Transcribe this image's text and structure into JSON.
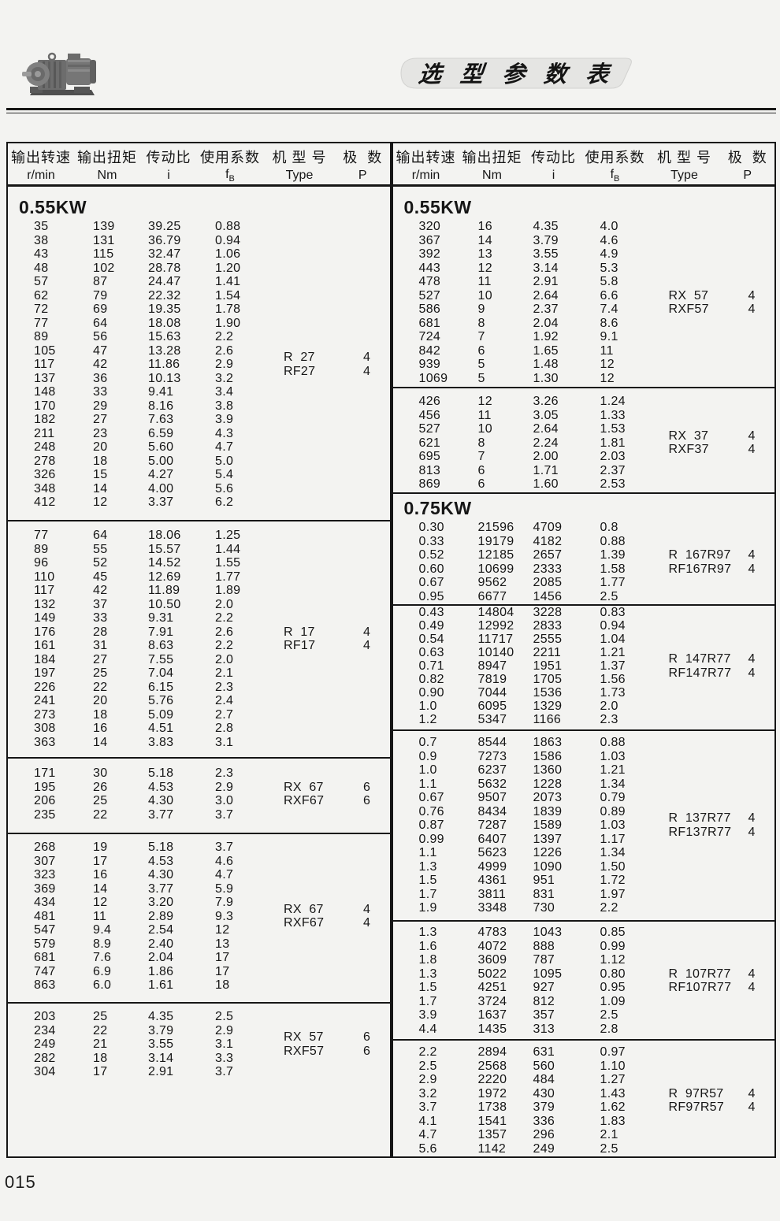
{
  "header": {
    "title": "选 型 参 数 表"
  },
  "footer": {
    "page_number": "015"
  },
  "colors": {
    "ink": "#161616",
    "page_bg": "#f3f3f1",
    "badge_bg": "#e5e5e3"
  },
  "table_headers": {
    "cn": {
      "speed": "输出转速",
      "torque": "输出扭矩",
      "ratio": "传动比",
      "service_factor": "使用系数",
      "model": "机 型 号",
      "poles": "极  数"
    },
    "units": {
      "speed": "r/min",
      "torque": "Nm",
      "ratio": "i",
      "service_factor_main": "f",
      "service_factor_sub": "B",
      "model": "Type",
      "poles": "P"
    }
  },
  "tables": {
    "left": {
      "blocks": [
        {
          "heading": "0.55KW",
          "rows": [
            [
              "35",
              "139",
              "39.25",
              "0.88"
            ],
            [
              "38",
              "131",
              "36.79",
              "0.94"
            ],
            [
              "43",
              "115",
              "32.47",
              "1.06"
            ],
            [
              "48",
              "102",
              "28.78",
              "1.20"
            ],
            [
              "57",
              "87",
              "24.47",
              "1.41"
            ],
            [
              "62",
              "79",
              "22.32",
              "1.54"
            ],
            [
              "72",
              "69",
              "19.35",
              "1.78"
            ],
            [
              "77",
              "64",
              "18.08",
              "1.90"
            ],
            [
              "89",
              "56",
              "15.63",
              "2.2"
            ],
            [
              "105",
              "47",
              "13.28",
              "2.6"
            ],
            [
              "117",
              "42",
              "11.86",
              "2.9"
            ],
            [
              "137",
              "36",
              "10.13",
              "3.2"
            ],
            [
              "148",
              "33",
              "9.41",
              "3.4"
            ],
            [
              "170",
              "29",
              "8.16",
              "3.8"
            ],
            [
              "182",
              "27",
              "7.63",
              "3.9"
            ],
            [
              "211",
              "23",
              "6.59",
              "4.3"
            ],
            [
              "248",
              "20",
              "5.60",
              "4.7"
            ],
            [
              "278",
              "18",
              "5.00",
              "5.0"
            ],
            [
              "326",
              "15",
              "4.27",
              "5.4"
            ],
            [
              "348",
              "14",
              "4.00",
              "5.6"
            ],
            [
              "412",
              "12",
              "3.37",
              "6.2"
            ]
          ],
          "types": [
            [
              "R  27",
              "4"
            ],
            [
              "RF27",
              "4"
            ]
          ]
        },
        {
          "rows": [
            [
              "77",
              "64",
              "18.06",
              "1.25"
            ],
            [
              "89",
              "55",
              "15.57",
              "1.44"
            ],
            [
              "96",
              "52",
              "14.52",
              "1.55"
            ],
            [
              "110",
              "45",
              "12.69",
              "1.77"
            ],
            [
              "117",
              "42",
              "11.89",
              "1.89"
            ],
            [
              "132",
              "37",
              "10.50",
              "2.0"
            ],
            [
              "149",
              "33",
              "9.31",
              "2.2"
            ],
            [
              "176",
              "28",
              "7.91",
              "2.6"
            ],
            [
              "161",
              "31",
              "8.63",
              "2.2"
            ],
            [
              "184",
              "27",
              "7.55",
              "2.0"
            ],
            [
              "197",
              "25",
              "7.04",
              "2.1"
            ],
            [
              "226",
              "22",
              "6.15",
              "2.3"
            ],
            [
              "241",
              "20",
              "5.76",
              "2.4"
            ],
            [
              "273",
              "18",
              "5.09",
              "2.7"
            ],
            [
              "308",
              "16",
              "4.51",
              "2.8"
            ],
            [
              "363",
              "14",
              "3.83",
              "3.1"
            ]
          ],
          "types": [
            [
              "R  17",
              "4"
            ],
            [
              "RF17",
              "4"
            ]
          ]
        },
        {
          "rows": [
            [
              "171",
              "30",
              "5.18",
              "2.3"
            ],
            [
              "195",
              "26",
              "4.53",
              "2.9"
            ],
            [
              "206",
              "25",
              "4.30",
              "3.0"
            ],
            [
              "235",
              "22",
              "3.77",
              "3.7"
            ]
          ],
          "types": [
            [
              "RX  67",
              "6"
            ],
            [
              "RXF67",
              "6"
            ]
          ]
        },
        {
          "rows": [
            [
              "268",
              "19",
              "5.18",
              "3.7"
            ],
            [
              "307",
              "17",
              "4.53",
              "4.6"
            ],
            [
              "323",
              "16",
              "4.30",
              "4.7"
            ],
            [
              "369",
              "14",
              "3.77",
              "5.9"
            ],
            [
              "434",
              "12",
              "3.20",
              "7.9"
            ],
            [
              "481",
              "11",
              "2.89",
              "9.3"
            ],
            [
              "547",
              "9.4",
              "2.54",
              "12"
            ],
            [
              "579",
              "8.9",
              "2.40",
              "13"
            ],
            [
              "681",
              "7.6",
              "2.04",
              "17"
            ],
            [
              "747",
              "6.9",
              "1.86",
              "17"
            ],
            [
              "863",
              "6.0",
              "1.61",
              "18"
            ]
          ],
          "types": [
            [
              "RX  67",
              "4"
            ],
            [
              "RXF67",
              "4"
            ]
          ]
        },
        {
          "rows": [
            [
              "203",
              "25",
              "4.35",
              "2.5"
            ],
            [
              "234",
              "22",
              "3.79",
              "2.9"
            ],
            [
              "249",
              "21",
              "3.55",
              "3.1"
            ],
            [
              "282",
              "18",
              "3.14",
              "3.3"
            ],
            [
              "304",
              "17",
              "2.91",
              "3.7"
            ]
          ],
          "types": [
            [
              "RX  57",
              "6"
            ],
            [
              "RXF57",
              "6"
            ]
          ]
        }
      ]
    },
    "right": {
      "blocks": [
        {
          "heading": "0.55KW",
          "rows": [
            [
              "320",
              "16",
              "4.35",
              "4.0"
            ],
            [
              "367",
              "14",
              "3.79",
              "4.6"
            ],
            [
              "392",
              "13",
              "3.55",
              "4.9"
            ],
            [
              "443",
              "12",
              "3.14",
              "5.3"
            ],
            [
              "478",
              "11",
              "2.91",
              "5.8"
            ],
            [
              "527",
              "10",
              "2.64",
              "6.6"
            ],
            [
              "586",
              "9",
              "2.37",
              "7.4"
            ],
            [
              "681",
              "8",
              "2.04",
              "8.6"
            ],
            [
              "724",
              "7",
              "1.92",
              "9.1"
            ],
            [
              "842",
              "6",
              "1.65",
              "11"
            ],
            [
              "939",
              "5",
              "1.48",
              "12"
            ],
            [
              "1069",
              "5",
              "1.30",
              "12"
            ]
          ],
          "types": [
            [
              "RX  57",
              "4"
            ],
            [
              "RXF57",
              "4"
            ]
          ]
        },
        {
          "rows": [
            [
              "426",
              "12",
              "3.26",
              "1.24"
            ],
            [
              "456",
              "11",
              "3.05",
              "1.33"
            ],
            [
              "527",
              "10",
              "2.64",
              "1.53"
            ],
            [
              "621",
              "8",
              "2.24",
              "1.81"
            ],
            [
              "695",
              "7",
              "2.00",
              "2.03"
            ],
            [
              "813",
              "6",
              "1.71",
              "2.37"
            ],
            [
              "869",
              "6",
              "1.60",
              "2.53"
            ]
          ],
          "types": [
            [
              "RX  37",
              "4"
            ],
            [
              "RXF37",
              "4"
            ]
          ]
        },
        {
          "heading": "0.75KW",
          "rows": [
            [
              "0.30",
              "21596",
              "4709",
              "0.8"
            ],
            [
              "0.33",
              "19179",
              "4182",
              "0.88"
            ],
            [
              "0.52",
              "12185",
              "2657",
              "1.39"
            ],
            [
              "0.60",
              "10699",
              "2333",
              "1.58"
            ],
            [
              "0.67",
              "9562",
              "2085",
              "1.77"
            ],
            [
              "0.95",
              "6677",
              "1456",
              "2.5"
            ]
          ],
          "types": [
            [
              "R  167R97",
              "4"
            ],
            [
              "RF167R97",
              "4"
            ]
          ]
        },
        {
          "rows": [
            [
              "0.43",
              "14804",
              "3228",
              "0.83"
            ],
            [
              "0.49",
              "12992",
              "2833",
              "0.94"
            ],
            [
              "0.54",
              "11717",
              "2555",
              "1.04"
            ],
            [
              "0.63",
              "10140",
              "2211",
              "1.21"
            ],
            [
              "0.71",
              "8947",
              "1951",
              "1.37"
            ],
            [
              "0.82",
              "7819",
              "1705",
              "1.56"
            ],
            [
              "0.90",
              "7044",
              "1536",
              "1.73"
            ],
            [
              "1.0",
              "6095",
              "1329",
              "2.0"
            ],
            [
              "1.2",
              "5347",
              "1166",
              "2.3"
            ]
          ],
          "types": [
            [
              "R  147R77",
              "4"
            ],
            [
              "RF147R77",
              "4"
            ]
          ]
        },
        {
          "rows": [
            [
              "0.7",
              "8544",
              "1863",
              "0.88"
            ],
            [
              "0.9",
              "7273",
              "1586",
              "1.03"
            ],
            [
              "1.0",
              "6237",
              "1360",
              "1.21"
            ],
            [
              "1.1",
              "5632",
              "1228",
              "1.34"
            ],
            [
              "0.67",
              "9507",
              "2073",
              "0.79"
            ],
            [
              "0.76",
              "8434",
              "1839",
              "0.89"
            ],
            [
              "0.87",
              "7287",
              "1589",
              "1.03"
            ],
            [
              "0.99",
              "6407",
              "1397",
              "1.17"
            ],
            [
              "1.1",
              "5623",
              "1226",
              "1.34"
            ],
            [
              "1.3",
              "4999",
              "1090",
              "1.50"
            ],
            [
              "1.5",
              "4361",
              "951",
              "1.72"
            ],
            [
              "1.7",
              "3811",
              "831",
              "1.97"
            ],
            [
              "1.9",
              "3348",
              "730",
              "2.2"
            ]
          ],
          "types": [
            [
              "R  137R77",
              "4"
            ],
            [
              "RF137R77",
              "4"
            ]
          ]
        },
        {
          "rows": [
            [
              "1.3",
              "4783",
              "1043",
              "0.85"
            ],
            [
              "1.6",
              "4072",
              "888",
              "0.99"
            ],
            [
              "1.8",
              "3609",
              "787",
              "1.12"
            ],
            [
              "1.3",
              "5022",
              "1095",
              "0.80"
            ],
            [
              "1.5",
              "4251",
              "927",
              "0.95"
            ],
            [
              "1.7",
              "3724",
              "812",
              "1.09"
            ],
            [
              "3.9",
              "1637",
              "357",
              "2.5"
            ],
            [
              "4.4",
              "1435",
              "313",
              "2.8"
            ]
          ],
          "types": [
            [
              "R  107R77",
              "4"
            ],
            [
              "RF107R77",
              "4"
            ]
          ]
        },
        {
          "rows": [
            [
              "2.2",
              "2894",
              "631",
              "0.97"
            ],
            [
              "2.5",
              "2568",
              "560",
              "1.10"
            ],
            [
              "2.9",
              "2220",
              "484",
              "1.27"
            ],
            [
              "3.2",
              "1972",
              "430",
              "1.43"
            ],
            [
              "3.7",
              "1738",
              "379",
              "1.62"
            ],
            [
              "4.1",
              "1541",
              "336",
              "1.83"
            ],
            [
              "4.7",
              "1357",
              "296",
              "2.1"
            ],
            [
              "5.6",
              "1142",
              "249",
              "2.5"
            ]
          ],
          "types": [
            [
              "R  97R57",
              "4"
            ],
            [
              "RF97R57",
              "4"
            ]
          ]
        }
      ]
    }
  }
}
